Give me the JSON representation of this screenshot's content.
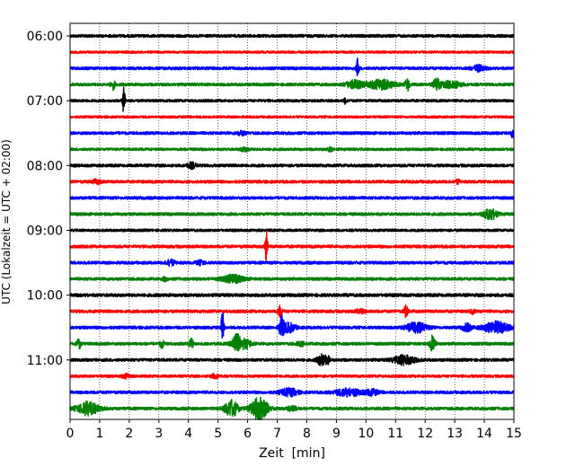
{
  "chart_data": {
    "type": "line",
    "title": "",
    "xlabel": "Zeit  [min]",
    "ylabel": "UTC (Lokalzeit = UTC + 02:00)",
    "xlim": [
      0,
      15
    ],
    "x_ticks": [
      "0",
      "1",
      "2",
      "3",
      "4",
      "5",
      "6",
      "7",
      "8",
      "9",
      "10",
      "11",
      "12",
      "13",
      "14",
      "15"
    ],
    "y_tick_labels": [
      "06:00",
      "07:00",
      "08:00",
      "09:00",
      "10:00",
      "11:00"
    ],
    "grid": "vertical dotted lines at each minute",
    "legend": "none",
    "trace_interval_min": 15,
    "trace_colors": [
      "#000000",
      "#ff0000",
      "#0000ff",
      "#008000"
    ],
    "traces": [
      {
        "start": "06:00",
        "color": "#000000",
        "amp": 1.0,
        "events": []
      },
      {
        "start": "06:15",
        "color": "#ff0000",
        "amp": 0.8,
        "events": []
      },
      {
        "start": "06:30",
        "color": "#0000ff",
        "amp": 1.0,
        "events": [
          {
            "t": 9.72,
            "a": 11,
            "w": 0.03
          },
          {
            "t": 13.8,
            "a": 3,
            "w": 0.15
          }
        ]
      },
      {
        "start": "06:45",
        "color": "#008000",
        "amp": 1.0,
        "events": [
          {
            "t": 1.45,
            "a": 5,
            "w": 0.05
          },
          {
            "t": 9.6,
            "a": 4,
            "w": 0.2
          },
          {
            "t": 10.5,
            "a": 5,
            "w": 0.3
          },
          {
            "t": 11.4,
            "a": 7,
            "w": 0.05
          },
          {
            "t": 12.4,
            "a": 7,
            "w": 0.08
          },
          {
            "t": 12.9,
            "a": 4,
            "w": 0.2
          }
        ]
      },
      {
        "start": "07:00",
        "color": "#000000",
        "amp": 0.9,
        "events": [
          {
            "t": 1.82,
            "a": 16,
            "w": 0.03
          },
          {
            "t": 9.3,
            "a": 3,
            "w": 0.03
          }
        ]
      },
      {
        "start": "07:15",
        "color": "#ff0000",
        "amp": 0.8,
        "events": []
      },
      {
        "start": "07:30",
        "color": "#0000ff",
        "amp": 1.0,
        "events": [
          {
            "t": 5.8,
            "a": 2,
            "w": 0.1
          },
          {
            "t": 14.95,
            "a": 4,
            "w": 0.05
          }
        ]
      },
      {
        "start": "07:45",
        "color": "#008000",
        "amp": 0.9,
        "events": [
          {
            "t": 5.9,
            "a": 2,
            "w": 0.1
          },
          {
            "t": 8.8,
            "a": 3,
            "w": 0.05
          }
        ]
      },
      {
        "start": "08:00",
        "color": "#000000",
        "amp": 1.0,
        "events": [
          {
            "t": 4.1,
            "a": 3,
            "w": 0.1
          }
        ]
      },
      {
        "start": "08:15",
        "color": "#ff0000",
        "amp": 1.0,
        "events": [
          {
            "t": 0.9,
            "a": 2,
            "w": 0.1
          },
          {
            "t": 13.1,
            "a": 2,
            "w": 0.05
          }
        ]
      },
      {
        "start": "08:30",
        "color": "#0000ff",
        "amp": 1.0,
        "events": []
      },
      {
        "start": "08:45",
        "color": "#008000",
        "amp": 1.0,
        "events": [
          {
            "t": 14.2,
            "a": 6,
            "w": 0.15
          }
        ]
      },
      {
        "start": "09:00",
        "color": "#000000",
        "amp": 0.9,
        "events": []
      },
      {
        "start": "09:15",
        "color": "#ff0000",
        "amp": 1.0,
        "events": [
          {
            "t": 6.63,
            "a": 19,
            "w": 0.03
          }
        ]
      },
      {
        "start": "09:30",
        "color": "#0000ff",
        "amp": 1.0,
        "events": [
          {
            "t": 3.4,
            "a": 3,
            "w": 0.1
          },
          {
            "t": 4.4,
            "a": 2,
            "w": 0.1
          }
        ]
      },
      {
        "start": "09:45",
        "color": "#008000",
        "amp": 1.0,
        "events": [
          {
            "t": 5.5,
            "a": 4,
            "w": 0.25
          },
          {
            "t": 3.2,
            "a": 2,
            "w": 0.05
          }
        ]
      },
      {
        "start": "10:00",
        "color": "#000000",
        "amp": 1.1,
        "events": []
      },
      {
        "start": "10:15",
        "color": "#ff0000",
        "amp": 1.0,
        "events": [
          {
            "t": 7.1,
            "a": 6,
            "w": 0.05
          },
          {
            "t": 9.8,
            "a": 2,
            "w": 0.1
          },
          {
            "t": 11.35,
            "a": 6,
            "w": 0.05
          },
          {
            "t": 13.6,
            "a": 2,
            "w": 0.05
          }
        ]
      },
      {
        "start": "10:30",
        "color": "#0000ff",
        "amp": 1.0,
        "events": [
          {
            "t": 5.15,
            "a": 18,
            "w": 0.03
          },
          {
            "t": 7.15,
            "a": 11,
            "w": 0.06
          },
          {
            "t": 7.4,
            "a": 5,
            "w": 0.15
          },
          {
            "t": 11.7,
            "a": 5,
            "w": 0.25
          },
          {
            "t": 13.4,
            "a": 4,
            "w": 0.1
          },
          {
            "t": 14.4,
            "a": 6,
            "w": 0.3
          }
        ]
      },
      {
        "start": "10:45",
        "color": "#008000",
        "amp": 1.0,
        "events": [
          {
            "t": 0.3,
            "a": 5,
            "w": 0.05
          },
          {
            "t": 3.1,
            "a": 4,
            "w": 0.05
          },
          {
            "t": 4.1,
            "a": 5,
            "w": 0.05
          },
          {
            "t": 5.6,
            "a": 10,
            "w": 0.1
          },
          {
            "t": 5.9,
            "a": 5,
            "w": 0.15
          },
          {
            "t": 12.25,
            "a": 10,
            "w": 0.06
          },
          {
            "t": 7.8,
            "a": 2,
            "w": 0.1
          }
        ]
      },
      {
        "start": "11:00",
        "color": "#000000",
        "amp": 1.0,
        "events": [
          {
            "t": 8.5,
            "a": 6,
            "w": 0.1
          },
          {
            "t": 8.7,
            "a": 4,
            "w": 0.05
          },
          {
            "t": 11.3,
            "a": 5,
            "w": 0.25
          }
        ]
      },
      {
        "start": "11:15",
        "color": "#ff0000",
        "amp": 0.9,
        "events": [
          {
            "t": 1.9,
            "a": 2,
            "w": 0.1
          },
          {
            "t": 4.9,
            "a": 2,
            "w": 0.1
          }
        ]
      },
      {
        "start": "11:30",
        "color": "#0000ff",
        "amp": 1.0,
        "events": [
          {
            "t": 7.4,
            "a": 4,
            "w": 0.2
          },
          {
            "t": 9.4,
            "a": 4,
            "w": 0.3
          },
          {
            "t": 10.2,
            "a": 3,
            "w": 0.15
          }
        ]
      },
      {
        "start": "11:45",
        "color": "#008000",
        "amp": 1.0,
        "events": [
          {
            "t": 0.6,
            "a": 7,
            "w": 0.25
          },
          {
            "t": 5.45,
            "a": 9,
            "w": 0.15
          },
          {
            "t": 6.4,
            "a": 12,
            "w": 0.2
          },
          {
            "t": 7.5,
            "a": 3,
            "w": 0.1
          }
        ]
      }
    ]
  }
}
